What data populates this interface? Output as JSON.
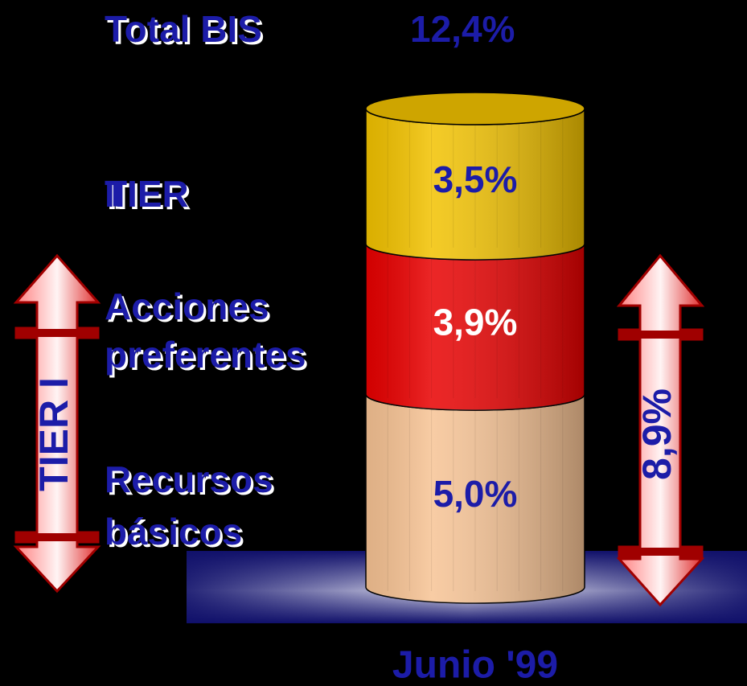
{
  "chart_data": {
    "type": "bar",
    "stacked": true,
    "categories": [
      "Junio '99"
    ],
    "series": [
      {
        "name": "Recursos básicos",
        "color": "#f7c394",
        "label_color": "#1c1ca8",
        "values": [
          5.0
        ],
        "value_labels": [
          "5,0%"
        ]
      },
      {
        "name": "Acciones preferentes",
        "color": "#e80000",
        "label_color": "#ffffff",
        "values": [
          3.9
        ],
        "value_labels": [
          "3,9%"
        ]
      },
      {
        "name": "TIER II",
        "color": "#f2c200",
        "label_color": "#1c1ca8",
        "values": [
          3.5
        ],
        "value_labels": [
          "3,5%"
        ]
      }
    ],
    "annotations": {
      "total_label": "Total BIS",
      "total_value": "12,4%",
      "tier1_label": "TIER I",
      "tier1_value": "8,9%"
    }
  }
}
